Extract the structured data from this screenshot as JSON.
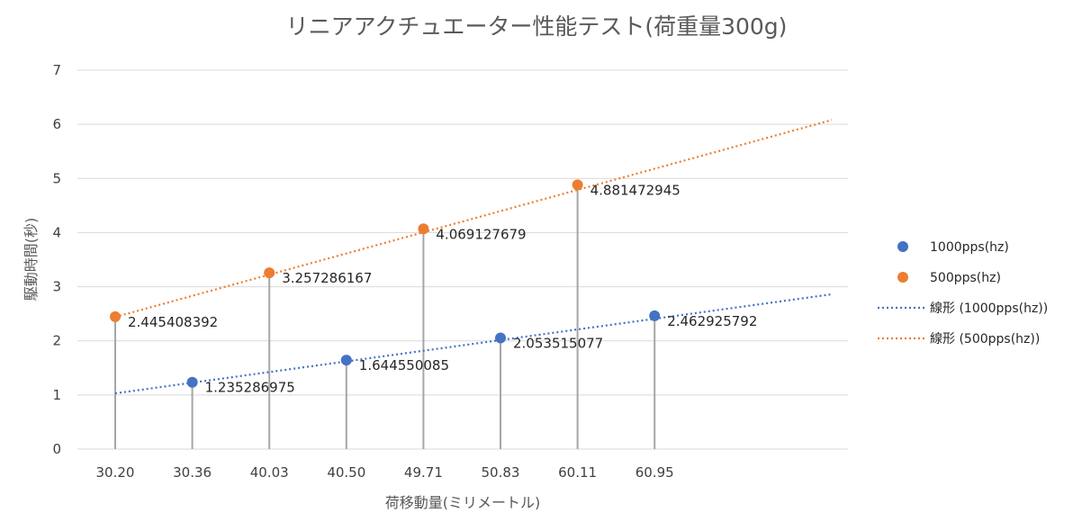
{
  "chart_data": {
    "type": "scatter",
    "title": "リニアアクチュエーター性能テスト(荷重量300g)",
    "xlabel": "荷移動量(ミリメートル)",
    "ylabel": "駆動時間(秒)",
    "ylim": [
      0,
      7
    ],
    "yticks": [
      "0",
      "1",
      "2",
      "3",
      "4",
      "5",
      "6",
      "7"
    ],
    "categories": [
      "30.20",
      "30.36",
      "40.03",
      "40.50",
      "49.71",
      "50.83",
      "60.11",
      "60.95"
    ],
    "grid": true,
    "legend_position": "right",
    "series": [
      {
        "name": "1000pps(hz)",
        "color": "#4472C4",
        "points": [
          {
            "category": "30.36",
            "y": 1.235286975,
            "label": "1.235286975"
          },
          {
            "category": "40.50",
            "y": 1.644550085,
            "label": "1.644550085"
          },
          {
            "category": "50.83",
            "y": 2.053515077,
            "label": "2.053515077"
          },
          {
            "category": "60.95",
            "y": 2.462925792,
            "label": "2.462925792"
          }
        ],
        "trendline": {
          "name": "線形 (1000pps(hz))",
          "type": "linear",
          "from_category": "30.20",
          "to_category_offset": 9.3,
          "y_start": 1.03,
          "y_end": 2.86
        }
      },
      {
        "name": "500pps(hz)",
        "color": "#ED7D31",
        "points": [
          {
            "category": "30.20",
            "y": 2.445408392,
            "label": "2.445408392"
          },
          {
            "category": "40.03",
            "y": 3.257286167,
            "label": "3.257286167"
          },
          {
            "category": "49.71",
            "y": 4.069127679,
            "label": "4.069127679"
          },
          {
            "category": "60.11",
            "y": 4.881472945,
            "label": "4.881472945"
          }
        ],
        "trendline": {
          "name": "線形 (500pps(hz))",
          "type": "linear",
          "from_category": "30.20",
          "to_category_offset": 9.3,
          "y_start": 2.44,
          "y_end": 6.08
        }
      }
    ],
    "drop_lines": true,
    "legend": [
      "1000pps(hz)",
      "500pps(hz)",
      "線形 (1000pps(hz))",
      "線形 (500pps(hz))"
    ]
  }
}
